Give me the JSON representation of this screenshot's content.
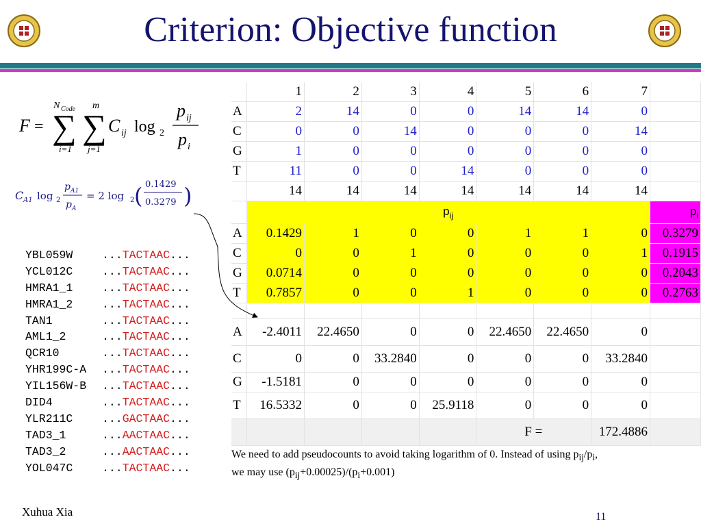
{
  "title": "Criterion: Objective function",
  "formula_main": {
    "lhs": "F",
    "eq": "=",
    "sum1_top": "N",
    "sum1_top_sub": "Code",
    "sum1_bottom": "i=1",
    "sum2_top": "m",
    "sum2_bottom": "j=1",
    "c": "C",
    "c_sub": "ij",
    "log": "log",
    "log_base": "2",
    "num": "p",
    "num_sub": "ij",
    "den": "p",
    "den_sub": "i"
  },
  "formula_example": {
    "c": "C",
    "c_sub": "A1",
    "log": "log",
    "log_base": "2",
    "num": "p",
    "num_sub": "A1",
    "den": "p",
    "den_sub": "A",
    "eq": "= 2 log",
    "eq_base": "2",
    "frac_num": "0.1429",
    "frac_den": "0.3279"
  },
  "genes": [
    {
      "name": "YBL059W",
      "prefix": "...",
      "seq": "TACTAAC",
      "suffix": "..."
    },
    {
      "name": "YCL012C",
      "prefix": "...",
      "seq": "TACTAAC",
      "suffix": "..."
    },
    {
      "name": "HMRA1_1",
      "prefix": "...",
      "seq": "TACTAAC",
      "suffix": "..."
    },
    {
      "name": "HMRA1_2",
      "prefix": "...",
      "seq": "TACTAAC",
      "suffix": "..."
    },
    {
      "name": "TAN1",
      "prefix": "...",
      "seq": "TACTAAC",
      "suffix": "..."
    },
    {
      "name": "AML1_2",
      "prefix": "...",
      "seq": "TACTAAC",
      "suffix": "..."
    },
    {
      "name": "QCR10",
      "prefix": "...",
      "seq": "TACTAAC",
      "suffix": "..."
    },
    {
      "name": "YHR199C-A",
      "prefix": "...",
      "seq": "TACTAAC",
      "suffix": "..."
    },
    {
      "name": "YIL156W-B",
      "prefix": "...",
      "seq": "TACTAAC",
      "suffix": "..."
    },
    {
      "name": "DID4",
      "prefix": "...",
      "seq": "TACTAAC",
      "suffix": "..."
    },
    {
      "name": "YLR211C",
      "prefix": "...",
      "seq": "GACTAAC",
      "suffix": "..."
    },
    {
      "name": "TAD3_1",
      "prefix": "...",
      "seq": "AACTAAC",
      "suffix": "..."
    },
    {
      "name": "TAD3_2",
      "prefix": "...",
      "seq": "AACTAAC",
      "suffix": "..."
    },
    {
      "name": "YOL047C",
      "prefix": "...",
      "seq": "TACTAAC",
      "suffix": "..."
    }
  ],
  "table": {
    "positions": [
      "1",
      "2",
      "3",
      "4",
      "5",
      "6",
      "7"
    ],
    "counts": [
      {
        "base": "A",
        "vals": [
          "2",
          "14",
          "0",
          "0",
          "14",
          "14",
          "0"
        ]
      },
      {
        "base": "C",
        "vals": [
          "0",
          "0",
          "14",
          "0",
          "0",
          "0",
          "14"
        ]
      },
      {
        "base": "G",
        "vals": [
          "1",
          "0",
          "0",
          "0",
          "0",
          "0",
          "0"
        ]
      },
      {
        "base": "T",
        "vals": [
          "11",
          "0",
          "0",
          "14",
          "0",
          "0",
          "0"
        ]
      }
    ],
    "totals": [
      "14",
      "14",
      "14",
      "14",
      "14",
      "14",
      "14"
    ],
    "pij_label": "p",
    "pij_label_sub": "ij",
    "pi_label": "p",
    "pi_label_sub": "i",
    "freqs": [
      {
        "base": "A",
        "vals": [
          "0.1429",
          "1",
          "0",
          "0",
          "1",
          "1",
          "0"
        ],
        "pi": "0.3279"
      },
      {
        "base": "C",
        "vals": [
          "0",
          "0",
          "1",
          "0",
          "0",
          "0",
          "1"
        ],
        "pi": "0.1915"
      },
      {
        "base": "G",
        "vals": [
          "0.0714",
          "0",
          "0",
          "0",
          "0",
          "0",
          "0"
        ],
        "pi": "0.2043"
      },
      {
        "base": "T",
        "vals": [
          "0.7857",
          "0",
          "0",
          "1",
          "0",
          "0",
          "0"
        ],
        "pi": "0.2763"
      }
    ],
    "scores": [
      {
        "base": "A",
        "vals": [
          "-2.4011",
          "22.4650",
          "0",
          "0",
          "22.4650",
          "22.4650",
          "0"
        ]
      },
      {
        "base": "C",
        "vals": [
          "0",
          "0",
          "33.2840",
          "0",
          "0",
          "0",
          "33.2840"
        ]
      },
      {
        "base": "G",
        "vals": [
          "-1.5181",
          "0",
          "0",
          "0",
          "0",
          "0",
          "0"
        ]
      },
      {
        "base": "T",
        "vals": [
          "16.5332",
          "0",
          "0",
          "25.9118",
          "0",
          "0",
          "0"
        ]
      }
    ],
    "f_label": "F =",
    "f_value": "172.4886"
  },
  "note": {
    "line1_a": "We need to add pseudocounts to avoid taking logarithm of 0. Instead of using p",
    "line1_sub1": "ij",
    "line1_b": "/p",
    "line1_sub2": "i",
    "line1_c": ",",
    "line2_a": "we may use (p",
    "line2_sub1": "ij",
    "line2_b": "+0.00025)/(p",
    "line2_sub2": "i",
    "line2_c": "+0.001)"
  },
  "footer": {
    "author": "Xuhua Xia",
    "page": "11"
  },
  "colors": {
    "title": "#14146e",
    "band_teal": "#1f7a86",
    "band_magenta": "#c83cc8",
    "highlight_yellow": "#ffff00",
    "highlight_magenta": "#ff00ff",
    "count_blue": "#2020cc",
    "mutation_red": "#d42020"
  }
}
